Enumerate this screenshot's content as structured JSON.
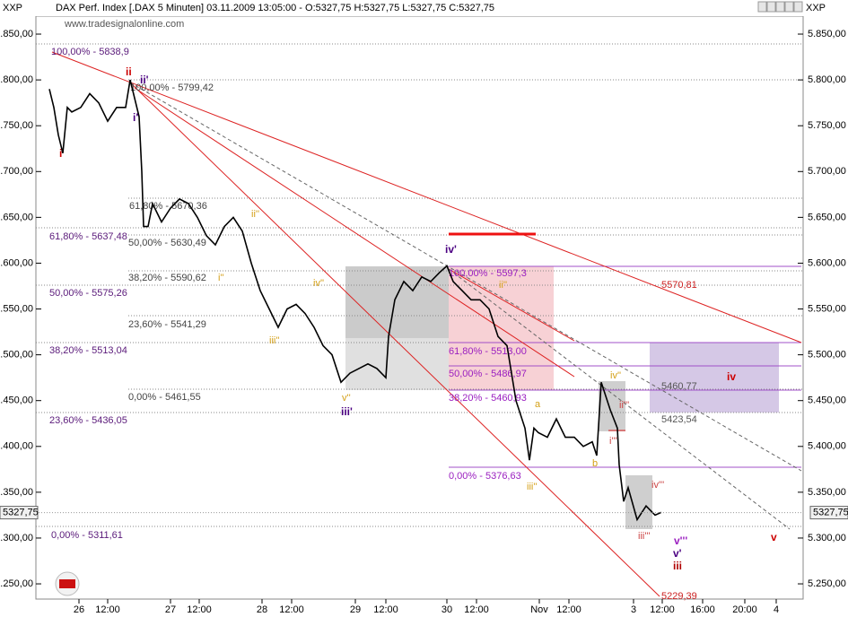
{
  "chart_data": {
    "type": "line",
    "title": "DAX Perf. Index [.DAX  5 Minuten] 03.11.2009 13:05:00 - O:5327,75 H:5327,75 L:5327,75 C:5327,75",
    "left_label": "XXP",
    "right_label": "XXP",
    "watermark": "www.tradesignalonline.com",
    "ylim": [
      5233.4,
      5869.6
    ],
    "yticks": [
      {
        "value": 5250,
        "label": "5.250,00"
      },
      {
        "value": 5300,
        "label": "5.300,00"
      },
      {
        "value": 5350,
        "label": "5.350,00"
      },
      {
        "value": 5400,
        "label": "5.400,00"
      },
      {
        "value": 5450,
        "label": "5.450,00"
      },
      {
        "value": 5500,
        "label": "5.500,00"
      },
      {
        "value": 5550,
        "label": "5.550,00"
      },
      {
        "value": 5600,
        "label": "5.600,00"
      },
      {
        "value": 5650,
        "label": "5.650,00"
      },
      {
        "value": 5700,
        "label": "5.700,00"
      },
      {
        "value": 5750,
        "label": "5.750,00"
      },
      {
        "value": 5800,
        "label": "5.800,00"
      },
      {
        "value": 5850,
        "label": "5.850,00"
      }
    ],
    "xlim": [
      0,
      85.5
    ],
    "xticks": [
      {
        "value": 4.8,
        "label": "26"
      },
      {
        "value": 8.0,
        "label": "12:00"
      },
      {
        "value": 15.0,
        "label": "27"
      },
      {
        "value": 18.2,
        "label": "12:00"
      },
      {
        "value": 25.2,
        "label": "28"
      },
      {
        "value": 28.5,
        "label": "12:00"
      },
      {
        "value": 35.6,
        "label": "29"
      },
      {
        "value": 39.0,
        "label": "12:00"
      },
      {
        "value": 45.8,
        "label": "30"
      },
      {
        "value": 49.1,
        "label": "12:00"
      },
      {
        "value": 56.1,
        "label": "Nov"
      },
      {
        "value": 59.4,
        "label": "12:00"
      },
      {
        "value": 66.6,
        "label": "3"
      },
      {
        "value": 69.8,
        "label": "12:00"
      },
      {
        "value": 74.3,
        "label": "16:00"
      },
      {
        "value": 79.0,
        "label": "20:00"
      },
      {
        "value": 82.5,
        "label": "4"
      }
    ],
    "last_price": {
      "value": 5327.75,
      "label": "5327,75"
    },
    "series": [
      {
        "name": "DAX",
        "color": "#000000",
        "x": [
          1.5,
          2.0,
          2.5,
          3.0,
          3.5,
          4.0,
          5.0,
          6.0,
          7.0,
          8.0,
          9.0,
          10.0,
          10.5,
          11.0,
          11.5,
          11.8,
          12.0,
          12.5,
          13.0,
          14.0,
          15.0,
          16.0,
          17.0,
          18.0,
          19.0,
          20.0,
          21.0,
          22.0,
          23.0,
          24.0,
          25.0,
          26.0,
          27.0,
          28.0,
          29.0,
          30.0,
          31.0,
          32.0,
          33.0,
          34.0,
          35.0,
          36.0,
          37.0,
          38.0,
          39.0,
          39.3,
          40.0,
          41.0,
          42.0,
          43.0,
          44.0,
          45.0,
          45.8,
          46.5,
          47.5,
          48.5,
          49.5,
          50.5,
          51.5,
          52.5,
          53.5,
          54.5,
          55.0,
          55.5,
          56.0,
          57.0,
          58.0,
          59.0,
          60.0,
          61.0,
          62.0,
          62.5,
          63.0,
          64.0,
          64.8,
          65.0,
          65.5,
          66.0,
          67.0,
          68.0,
          69.0,
          69.7
        ],
        "values": [
          5790,
          5770,
          5740,
          5720,
          5770,
          5765,
          5770,
          5785,
          5775,
          5755,
          5770,
          5770,
          5800,
          5780,
          5760,
          5700,
          5640,
          5640,
          5665,
          5645,
          5660,
          5670,
          5665,
          5650,
          5630,
          5620,
          5640,
          5650,
          5635,
          5600,
          5570,
          5550,
          5530,
          5550,
          5555,
          5545,
          5530,
          5510,
          5500,
          5470,
          5480,
          5485,
          5490,
          5485,
          5475,
          5520,
          5560,
          5580,
          5570,
          5585,
          5580,
          5590,
          5597,
          5580,
          5570,
          5560,
          5560,
          5550,
          5520,
          5510,
          5450,
          5420,
          5385,
          5420,
          5415,
          5410,
          5430,
          5410,
          5410,
          5400,
          5405,
          5390,
          5470,
          5440,
          5420,
          5380,
          5340,
          5355,
          5320,
          5335,
          5325,
          5328
        ]
      }
    ],
    "annotations": [
      {
        "text": "100,00% - 5838,9",
        "color": "#5a1a7a"
      },
      {
        "text": "61,80% - 5637,48",
        "color": "#5a1a7a"
      },
      {
        "text": "50,00% - 5575,26",
        "color": "#5a1a7a"
      },
      {
        "text": "38,20% - 5513,04",
        "color": "#5a1a7a"
      },
      {
        "text": "23,60% - 5436,05",
        "color": "#5a1a7a"
      },
      {
        "text": "0,00% - 5311,61",
        "color": "#5a1a7a"
      },
      {
        "text": "100,00% - 5799,42",
        "color": "#444444"
      },
      {
        "text": "61,80% - 5670,36",
        "color": "#444444"
      },
      {
        "text": "50,00% - 5630,49",
        "color": "#444444"
      },
      {
        "text": "38,20% - 5590,62",
        "color": "#444444"
      },
      {
        "text": "23,60% - 5541,29",
        "color": "#444444"
      },
      {
        "text": "0,00% - 5461,55",
        "color": "#444444"
      },
      {
        "text": "100,00% - 5597,3",
        "color": "#9b20c0"
      },
      {
        "text": "61,80% - 5513,00",
        "color": "#9b20c0"
      },
      {
        "text": "50,00% - 5486,97",
        "color": "#9b20c0"
      },
      {
        "text": "38,20% - 5460,93",
        "color": "#9b20c0"
      },
      {
        "text": "0,00% - 5376,63",
        "color": "#9b20c0"
      },
      {
        "text": "5570,81",
        "color": "#cc2222"
      },
      {
        "text": "5460,77",
        "color": "#555555"
      },
      {
        "text": "5423,54",
        "color": "#555555"
      },
      {
        "text": "5229,39",
        "color": "#cc2222"
      },
      {
        "text": "i",
        "color": "#cc0000"
      },
      {
        "text": "ii",
        "color": "#cc0000"
      },
      {
        "text": "ii'",
        "color": "#4b0082"
      },
      {
        "text": "i'",
        "color": "#4b0082"
      },
      {
        "text": "iv'",
        "color": "#4b0082"
      },
      {
        "text": "iii'",
        "color": "#4b0082"
      },
      {
        "text": "v'''",
        "color": "#9b20c0"
      },
      {
        "text": "v'",
        "color": "#4b0082"
      },
      {
        "text": "iii",
        "color": "#b00000"
      },
      {
        "text": "iv",
        "color": "#cc0000"
      },
      {
        "text": "v",
        "color": "#cc0000"
      },
      {
        "text": "ii''",
        "color": "#d4a017"
      },
      {
        "text": "i''",
        "color": "#d4a017"
      },
      {
        "text": "iii''",
        "color": "#d4a017"
      },
      {
        "text": "iv''",
        "color": "#d4a017"
      },
      {
        "text": "v''",
        "color": "#d4a017"
      },
      {
        "text": "ii''",
        "color": "#d4a017"
      },
      {
        "text": "iii''",
        "color": "#d4a017"
      },
      {
        "text": "a",
        "color": "#d4a017"
      },
      {
        "text": "b",
        "color": "#d4a017"
      },
      {
        "text": "iv''",
        "color": "#d4a017"
      },
      {
        "text": "ii'''",
        "color": "#cc4444"
      },
      {
        "text": "i'''",
        "color": "#cc4444"
      },
      {
        "text": "iv'''",
        "color": "#cc4444"
      },
      {
        "text": "iii'''",
        "color": "#cc4444"
      }
    ]
  }
}
